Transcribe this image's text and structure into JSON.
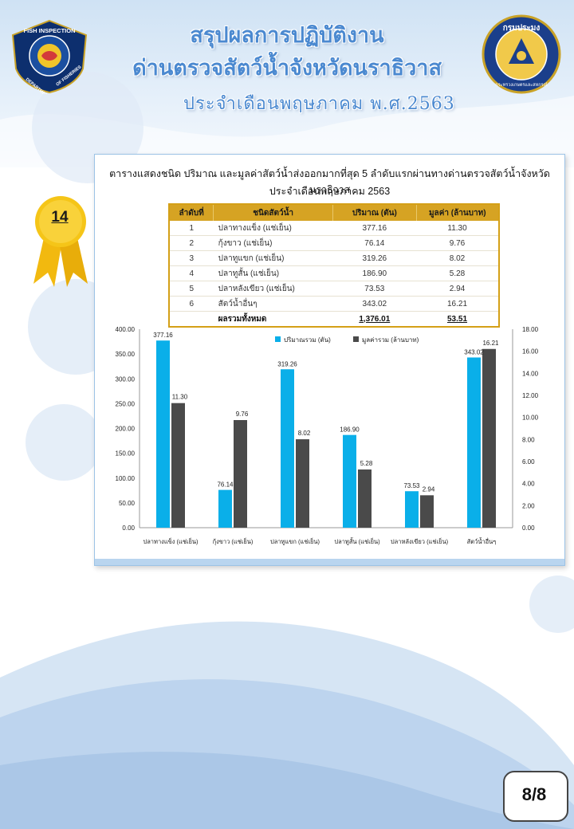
{
  "header": {
    "title_line1": "สรุปผลการปฏิบัติงาน",
    "title_line2": "ด่านตรวจสัตว์น้ำจังหวัดนราธิวาส",
    "subtitle": "ประจำเดือนพฤษภาคม พ.ศ.2563"
  },
  "logos": {
    "left_text_top": "FISH INSPECTION",
    "left_text_left": "DEPARTMENT",
    "left_text_right": "OF FISHERIES",
    "right_text_top": "กรมประมง",
    "right_text_bottom": "กระทรวงเกษตรและสหกรณ์"
  },
  "badge": {
    "number": "14"
  },
  "report": {
    "title_line1": "ตารางแสดงชนิด ปริมาณ และมูลค่าสัตว์น้ำส่งออกมากที่สุด 5 ลำดับแรกผ่านทางด่านตรวจสัตว์น้ำจังหวัดนราธิวาส",
    "title_line2": "ประจำเดือนพฤษภาคม 2563",
    "table": {
      "headers": [
        "ลำดับที่",
        "ชนิดสัตว์น้ำ",
        "ปริมาณ (ตัน)",
        "มูลค่า (ล้านบาท)"
      ],
      "rows": [
        [
          "1",
          "ปลาทางแข็ง (แช่เย็น)",
          "377.16",
          "11.30"
        ],
        [
          "2",
          "กุ้งขาว (แช่เย็น)",
          "76.14",
          "9.76"
        ],
        [
          "3",
          "ปลาทูแขก (แช่เย็น)",
          "319.26",
          "8.02"
        ],
        [
          "4",
          "ปลาทูสั้น (แช่เย็น)",
          "186.90",
          "5.28"
        ],
        [
          "5",
          "ปลาหลังเขียว (แช่เย็น)",
          "73.53",
          "2.94"
        ],
        [
          "6",
          "สัตว์น้ำอื่นๆ",
          "343.02",
          "16.21"
        ]
      ],
      "total_label": "ผลรวมทั้งหมด",
      "total_volume": "1,376.01",
      "total_value": "53.51"
    }
  },
  "chart_data": {
    "type": "bar",
    "categories": [
      "ปลาทางแข็ง (แช่เย็น)",
      "กุ้งขาว (แช่เย็น)",
      "ปลาทูแขก (แช่เย็น)",
      "ปลาทูสั้น (แช่เย็น)",
      "ปลาหลังเขียว (แช่เย็น)",
      "สัตว์น้ำอื่นๆ"
    ],
    "series": [
      {
        "name": "ปริมาณรวม (ตัน)",
        "axis": "left",
        "values": [
          377.16,
          76.14,
          319.26,
          186.9,
          73.53,
          343.02
        ],
        "labels": [
          "377.16",
          "76.14",
          "319.26",
          "186.90",
          "73.53",
          "343.02"
        ],
        "color": "#0aafe9"
      },
      {
        "name": "มูลค่ารวม (ล้านบาท)",
        "axis": "right",
        "values": [
          11.3,
          9.76,
          8.02,
          5.28,
          2.94,
          16.21
        ],
        "labels": [
          "11.30",
          "9.76",
          "8.02",
          "5.28",
          "2.94",
          "16.21"
        ],
        "color": "#4a4a4a"
      }
    ],
    "y_left_ticks": [
      "0.00",
      "50.00",
      "100.00",
      "150.00",
      "200.00",
      "250.00",
      "300.00",
      "350.00",
      "400.00"
    ],
    "y_right_ticks": [
      "0.00",
      "2.00",
      "4.00",
      "6.00",
      "8.00",
      "10.00",
      "12.00",
      "14.00",
      "16.00",
      "18.00"
    ],
    "ylim_left": [
      0,
      400
    ],
    "ylim_right": [
      0,
      18
    ],
    "grid": false,
    "legend_position": "top-center"
  },
  "footer": {
    "page": "8/8"
  },
  "colors": {
    "title_blue": "#4b89d0",
    "table_gold": "#d6a323",
    "ribbon_yellow": "#f5c518",
    "bar_blue": "#0aafe9",
    "bar_gray": "#4a4a4a"
  }
}
